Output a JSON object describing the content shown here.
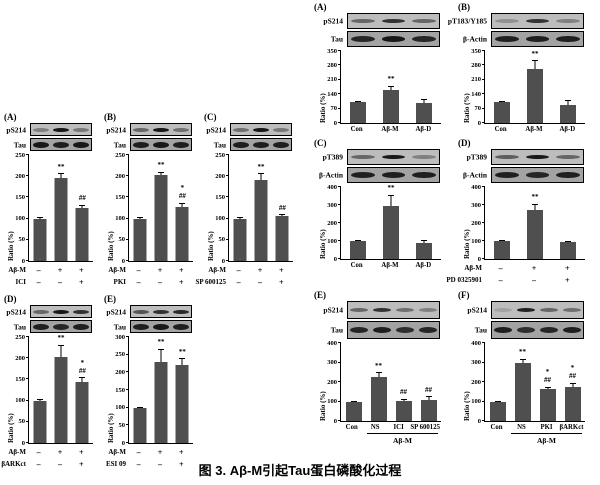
{
  "caption": "图 3. Aβ-M引起Tau蛋白磷酸化过程",
  "chart_data": [
    {
      "panel": "(A)",
      "side": "left",
      "type": "bar",
      "ylabel": "Ratio (%)",
      "ymax": 250,
      "ystep": 50,
      "blots": [
        {
          "label": "pS214",
          "bands": [
            0.35,
            0.95,
            0.4
          ]
        },
        {
          "label": "Tau",
          "bands": [
            0.95,
            0.9,
            0.95
          ]
        }
      ],
      "values": [
        100,
        195,
        125
      ],
      "errors": [
        3,
        12,
        8
      ],
      "sig": [
        [],
        [
          "**"
        ],
        [
          "##"
        ]
      ],
      "xrows": [
        {
          "label": "Aβ-M",
          "signs": [
            "–",
            "+",
            "+"
          ]
        },
        {
          "label": "ICI",
          "signs": [
            "–",
            "–",
            "+"
          ]
        }
      ]
    },
    {
      "panel": "(B)",
      "side": "left",
      "type": "bar",
      "ylabel": "Ratio (%)",
      "ymax": 250,
      "ystep": 50,
      "blots": [
        {
          "label": "pS214",
          "bands": [
            0.5,
            0.95,
            0.45
          ]
        },
        {
          "label": "Tau",
          "bands": [
            0.9,
            0.95,
            0.9
          ]
        }
      ],
      "values": [
        100,
        202,
        128
      ],
      "errors": [
        3,
        8,
        10
      ],
      "sig": [
        [],
        [
          "**"
        ],
        [
          "*",
          "##"
        ]
      ],
      "xrows": [
        {
          "label": "Aβ-M",
          "signs": [
            "–",
            "+",
            "+"
          ]
        },
        {
          "label": "PKI",
          "signs": [
            "–",
            "–",
            "+"
          ]
        }
      ]
    },
    {
      "panel": "(C)",
      "side": "left",
      "type": "bar",
      "ylabel": "Ratio (%)",
      "ymax": 250,
      "ystep": 50,
      "blots": [
        {
          "label": "pS214",
          "bands": [
            0.45,
            0.95,
            0.4
          ]
        },
        {
          "label": "Tau",
          "bands": [
            0.9,
            0.9,
            0.9
          ]
        }
      ],
      "values": [
        100,
        192,
        105
      ],
      "errors": [
        4,
        15,
        5
      ],
      "sig": [
        [],
        [
          "**"
        ],
        [
          "##"
        ]
      ],
      "xrows": [
        {
          "label": "Aβ-M",
          "signs": [
            "–",
            "+",
            "+"
          ]
        },
        {
          "label": "SP 600125",
          "signs": [
            "–",
            "–",
            "+"
          ]
        }
      ]
    },
    {
      "panel": "(D)",
      "side": "left",
      "type": "bar",
      "ylabel": "Ratio (%)",
      "ymax": 250,
      "ystep": 50,
      "blots": [
        {
          "label": "pS214",
          "bands": [
            0.5,
            0.95,
            0.8
          ]
        },
        {
          "label": "Tau",
          "bands": [
            0.9,
            0.85,
            0.9
          ]
        }
      ],
      "values": [
        100,
        202,
        143
      ],
      "errors": [
        3,
        30,
        12
      ],
      "sig": [
        [],
        [
          "**"
        ],
        [
          "*",
          "##"
        ]
      ],
      "xrows": [
        {
          "label": "Aβ-M",
          "signs": [
            "–",
            "+",
            "+"
          ]
        },
        {
          "label": "βARKct",
          "signs": [
            "–",
            "–",
            "+"
          ]
        }
      ]
    },
    {
      "panel": "(E)",
      "side": "left",
      "type": "bar",
      "ylabel": "Ratio (%)",
      "ymax": 300,
      "ystep": 50,
      "blots": [
        {
          "label": "pS214",
          "bands": [
            0.6,
            0.8,
            0.85
          ]
        },
        {
          "label": "Tau",
          "bands": [
            0.9,
            0.95,
            0.9
          ]
        }
      ],
      "values": [
        100,
        228,
        220
      ],
      "errors": [
        3,
        38,
        20
      ],
      "sig": [
        [],
        [
          "**"
        ],
        [
          "**"
        ]
      ],
      "xrows": [
        {
          "label": "Aβ-M",
          "signs": [
            "–",
            "+",
            "+"
          ]
        },
        {
          "label": "ESI 09",
          "signs": [
            "–",
            "–",
            "+"
          ]
        }
      ]
    },
    {
      "panel": "(A)",
      "side": "right",
      "type": "bar",
      "ylabel": "Ratio (%)",
      "ymax": 350,
      "ystep": 70,
      "blots": [
        {
          "label": "pS214",
          "bands": [
            0.5,
            0.8,
            0.5
          ]
        },
        {
          "label": "Tau",
          "bands": [
            0.85,
            0.95,
            0.85
          ]
        }
      ],
      "categories": [
        "Con",
        "Aβ-M",
        "Aβ-D"
      ],
      "values": [
        100,
        160,
        97
      ],
      "errors": [
        5,
        22,
        18
      ],
      "sig": [
        [],
        [
          "**"
        ],
        []
      ]
    },
    {
      "panel": "(B)",
      "side": "right",
      "type": "bar",
      "ylabel": "Ratio (%)",
      "ymax": 350,
      "ystep": 70,
      "blots": [
        {
          "label": "pT183/Y185",
          "bands": [
            0.25,
            0.8,
            0.35
          ]
        },
        {
          "label": "β-Actin",
          "bands": [
            0.9,
            0.9,
            0.9
          ]
        }
      ],
      "categories": [
        "Con",
        "Aβ-M",
        "Aβ-D"
      ],
      "values": [
        100,
        265,
        88
      ],
      "errors": [
        8,
        40,
        25
      ],
      "sig": [
        [],
        [
          "**"
        ],
        []
      ]
    },
    {
      "panel": "(C)",
      "side": "right",
      "type": "bar",
      "ylabel": "Ratio (%)",
      "ymax": 400,
      "ystep": 100,
      "blots": [
        {
          "label": "pT389",
          "bands": [
            0.5,
            0.95,
            0.35
          ]
        },
        {
          "label": "β-Actin",
          "bands": [
            0.9,
            0.9,
            0.9
          ]
        }
      ],
      "categories": [
        "Con",
        "Aβ-M",
        "Aβ-D"
      ],
      "values": [
        100,
        295,
        90
      ],
      "errors": [
        8,
        60,
        18
      ],
      "sig": [
        [],
        [
          "**"
        ],
        []
      ]
    },
    {
      "panel": "(D)",
      "side": "right",
      "type": "bar",
      "ylabel": "Ratio (%)",
      "ymax": 400,
      "ystep": 100,
      "blots": [
        {
          "label": "pT389",
          "bands": [
            0.55,
            0.95,
            0.5
          ]
        },
        {
          "label": "β-Actin",
          "bands": [
            0.9,
            0.85,
            0.9
          ]
        }
      ],
      "values": [
        100,
        270,
        92
      ],
      "errors": [
        6,
        35,
        10
      ],
      "sig": [
        [],
        [
          "**"
        ],
        []
      ],
      "xrows": [
        {
          "label": "Aβ-M",
          "signs": [
            "–",
            "+",
            "+"
          ]
        },
        {
          "label": "PD 0325901",
          "signs": [
            "–",
            "–",
            "+"
          ]
        }
      ]
    },
    {
      "panel": "(E)",
      "side": "right",
      "type": "bar",
      "ylabel": "Ratio (%)",
      "ymax": 400,
      "ystep": 100,
      "blots": [
        {
          "label": "pS214",
          "bands": [
            0.5,
            0.8,
            0.45,
            0.35
          ]
        },
        {
          "label": "Tau",
          "bands": [
            0.85,
            0.9,
            0.8,
            0.85
          ]
        }
      ],
      "categories": [
        "Con",
        "NS",
        "ICI",
        "SP 600125"
      ],
      "values": [
        100,
        225,
        105,
        108
      ],
      "errors": [
        5,
        25,
        10,
        18
      ],
      "sig": [
        [],
        [
          "**"
        ],
        [
          "##"
        ],
        [
          "##"
        ]
      ],
      "group": {
        "label": "Aβ-M",
        "from": 1
      }
    },
    {
      "panel": "(F)",
      "side": "right",
      "type": "bar",
      "ylabel": "Ratio (%)",
      "ymax": 400,
      "ystep": 100,
      "blots": [
        {
          "label": "pS214",
          "bands": [
            0.15,
            0.9,
            0.5,
            0.45
          ]
        },
        {
          "label": "Tau",
          "bands": [
            0.9,
            0.8,
            0.85,
            0.9
          ]
        }
      ],
      "categories": [
        "Con",
        "NS",
        "PKI",
        "βARKct"
      ],
      "values": [
        100,
        300,
        162,
        172
      ],
      "errors": [
        5,
        18,
        15,
        25
      ],
      "sig": [
        [],
        [
          "**"
        ],
        [
          "*",
          "##"
        ],
        [
          "*",
          "##"
        ]
      ],
      "group": {
        "label": "Aβ-M",
        "from": 1
      }
    }
  ]
}
